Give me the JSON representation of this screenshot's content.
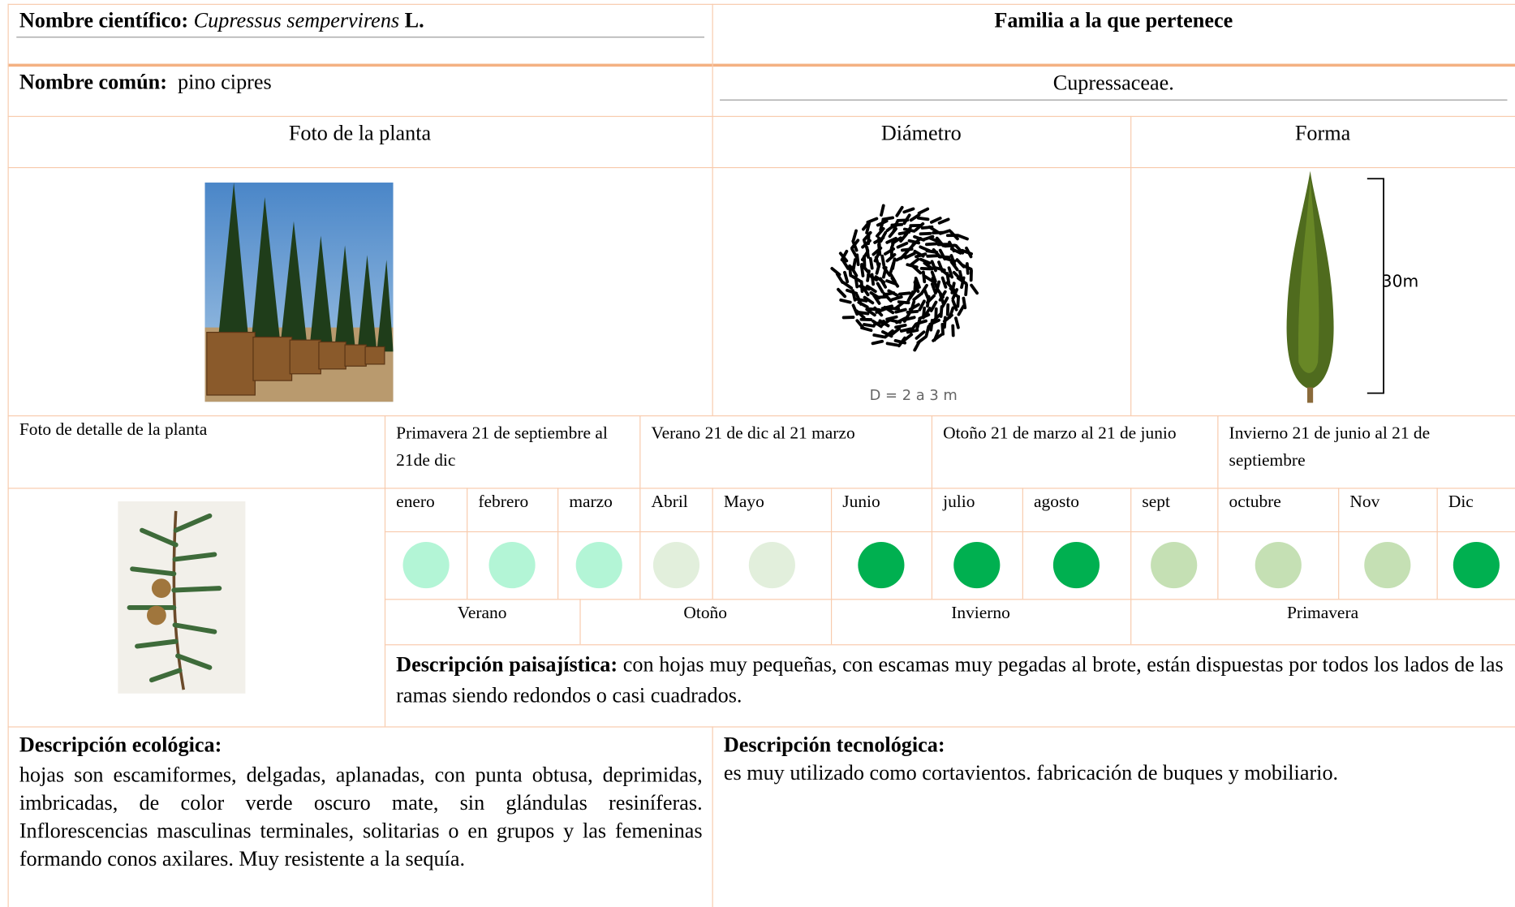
{
  "header": {
    "scientific_label": "Nombre científico:",
    "scientific_name": "Cupressus sempervirens",
    "author": "L.",
    "family_header": "Familia a la que pertenece",
    "common_label": "Nombre común:",
    "common_name": "pino cipres",
    "family": "Cupressaceae."
  },
  "columns": {
    "photo": "Foto de la planta",
    "diameter": "Diámetro",
    "form": "Forma",
    "diameter_label": "D = 2 a 3 m",
    "height_label": "30m",
    "detail_photo": "Foto de detalle de la planta"
  },
  "seasons": [
    "Primavera 21 de septiembre al 21de dic",
    "Verano 21 de dic al 21 marzo",
    "Otoño 21 de marzo al 21 de junio",
    "Invierno 21 de junio al 21 de septiembre"
  ],
  "months": [
    {
      "name": "enero",
      "color": "#b3f5d6"
    },
    {
      "name": "febrero",
      "color": "#b3f5d6"
    },
    {
      "name": "marzo",
      "color": "#b3f5d6"
    },
    {
      "name": "Abril",
      "color": "#e2efdc"
    },
    {
      "name": "Mayo",
      "color": "#e2efdc"
    },
    {
      "name": "Junio",
      "color": "#00b050"
    },
    {
      "name": "julio",
      "color": "#00b050"
    },
    {
      "name": "agosto",
      "color": "#00b050"
    },
    {
      "name": "sept",
      "color": "#c5e0b4"
    },
    {
      "name": "octubre",
      "color": "#c5e0b4"
    },
    {
      "name": "Nov",
      "color": "#c5e0b4"
    },
    {
      "name": "Dic",
      "color": "#00b050"
    }
  ],
  "season_bands": [
    "Verano",
    "Otoño",
    "Invierno",
    "Primavera"
  ],
  "landscape": {
    "label": "Descripción paisajística:",
    "text": "con hojas muy pequeñas, con escamas muy pegadas al brote, están dispuestas por todos los lados de las ramas siendo redondos o casi cuadrados."
  },
  "ecological": {
    "label": "Descripción ecológica:",
    "text": "hojas son escamiformes, delgadas, aplanadas, con punta obtusa, deprimidas, imbricadas, de color verde oscuro mate, sin glándulas resiníferas. Inflorescencias masculinas terminales, solitarias o en grupos y las femeninas formando conos axilares. Muy resistente a la sequía."
  },
  "technological": {
    "label": "Descripción tecnológica:",
    "text": "es muy utilizado como cortavientos. fabricación de buques y mobiliario."
  }
}
